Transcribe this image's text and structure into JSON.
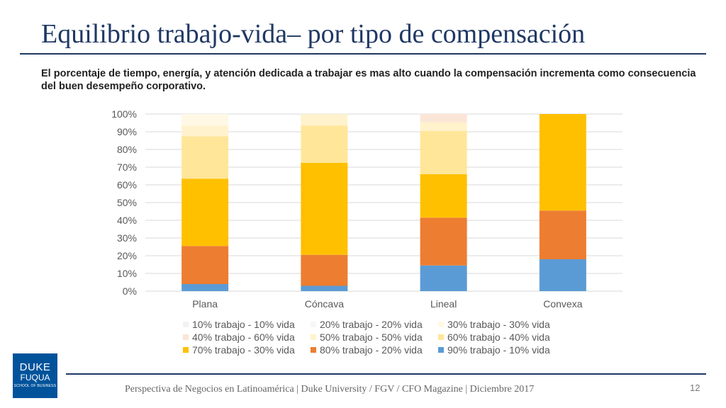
{
  "slide": {
    "title": "Equilibrio trabajo-vida– por tipo de compensación",
    "subtitle": "El porcentaje de tiempo, energía, y atención dedicada a trabajar es mas alto cuando la compensación incrementa como consecuencia del buen desempeño corporativo.",
    "footer": "Perspectiva de Negocios en Latinoamérica | Duke University / FGV / CFO Magazine | Diciembre 2017",
    "page_number": "12",
    "logo": {
      "line1": "DUKE",
      "line2": "FUQUA",
      "line3": "SCHOOL OF BUSINESS"
    }
  },
  "chart_data": {
    "type": "bar",
    "stacked": true,
    "categories": [
      "Plana",
      "Cóncava",
      "Lineal",
      "Convexa"
    ],
    "ylim": [
      0,
      100
    ],
    "yticks": [
      "0%",
      "10%",
      "20%",
      "30%",
      "40%",
      "50%",
      "60%",
      "70%",
      "80%",
      "90%",
      "100%"
    ],
    "grid": true,
    "legend_position": "bottom",
    "series": [
      {
        "name": "90% trabajo - 10% vida",
        "color": "#5b9bd5",
        "values": [
          4,
          3,
          14.5,
          18
        ]
      },
      {
        "name": "80% trabajo - 20% vida",
        "color": "#ed7d31",
        "values": [
          21.5,
          17.5,
          27,
          27.5
        ]
      },
      {
        "name": "70% trabajo - 30% vida",
        "color": "#ffc000",
        "values": [
          38,
          52,
          24.5,
          54.5
        ]
      },
      {
        "name": "60% trabajo - 40% vida",
        "color": "#ffe699",
        "values": [
          24,
          21,
          24.5,
          0
        ]
      },
      {
        "name": "50% trabajo - 50% vida",
        "color": "#fff2cc",
        "values": [
          6,
          6.5,
          5,
          0
        ]
      },
      {
        "name": "40% trabajo - 60% vida",
        "color": "#fbe5d6",
        "values": [
          0,
          0,
          4.5,
          0
        ]
      },
      {
        "name": "30% trabajo - 30% vida",
        "color": "#fff8e5",
        "values": [
          6.5,
          0,
          0,
          0
        ]
      },
      {
        "name": "20% trabajo - 20% vida",
        "color": "#f7f7f7",
        "values": [
          0,
          0,
          0,
          0
        ]
      },
      {
        "name": "10% trabajo - 10% vida",
        "color": "#f2f2f2",
        "values": [
          0,
          0,
          0,
          0
        ]
      }
    ],
    "legend_order": [
      "10% trabajo - 10% vida",
      "20% trabajo - 20% vida",
      "30% trabajo - 30% vida",
      "40% trabajo - 60% vida",
      "50% trabajo - 50% vida",
      "60% trabajo - 40% vida",
      "70% trabajo - 30% vida",
      "80% trabajo - 20% vida",
      "90% trabajo - 10% vida"
    ]
  }
}
